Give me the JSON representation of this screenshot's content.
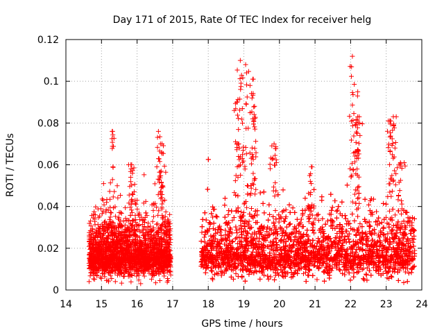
{
  "chart_data": {
    "type": "scatter",
    "title": "Day 171 of 2015, Rate Of TEC Index for receiver helg",
    "xlabel": "GPS time / hours",
    "ylabel": "ROTI / TECUs",
    "xlim": [
      14,
      24
    ],
    "ylim": [
      0,
      0.12
    ],
    "xticks": [
      "14",
      "15",
      "16",
      "17",
      "18",
      "19",
      "20",
      "21",
      "22",
      "23",
      "24"
    ],
    "yticks": [
      "0",
      "0.02",
      "0.04",
      "0.06",
      "0.08",
      "0.1",
      "0.12"
    ],
    "grid": true,
    "marker": "+",
    "color": "#ff0000",
    "segments": [
      {
        "x_start": 14.65,
        "x_end": 16.95,
        "base_mean": 0.016,
        "spread": 0.008,
        "density": 900
      },
      {
        "x_start": 17.8,
        "x_end": 23.8,
        "base_mean": 0.017,
        "spread": 0.009,
        "density": 900
      }
    ],
    "peaks": [
      {
        "x": 15.3,
        "y": 0.076
      },
      {
        "x": 15.85,
        "y": 0.06
      },
      {
        "x": 16.6,
        "y": 0.076
      },
      {
        "x": 16.7,
        "y": 0.07
      },
      {
        "x": 18.8,
        "y": 0.09
      },
      {
        "x": 18.9,
        "y": 0.11
      },
      {
        "x": 19.05,
        "y": 0.108
      },
      {
        "x": 19.25,
        "y": 0.101
      },
      {
        "x": 19.3,
        "y": 0.088
      },
      {
        "x": 19.85,
        "y": 0.07
      },
      {
        "x": 20.9,
        "y": 0.059
      },
      {
        "x": 22.05,
        "y": 0.112
      },
      {
        "x": 22.2,
        "y": 0.095
      },
      {
        "x": 22.2,
        "y": 0.083
      },
      {
        "x": 23.1,
        "y": 0.081
      },
      {
        "x": 23.2,
        "y": 0.083
      },
      {
        "x": 23.4,
        "y": 0.061
      }
    ]
  }
}
